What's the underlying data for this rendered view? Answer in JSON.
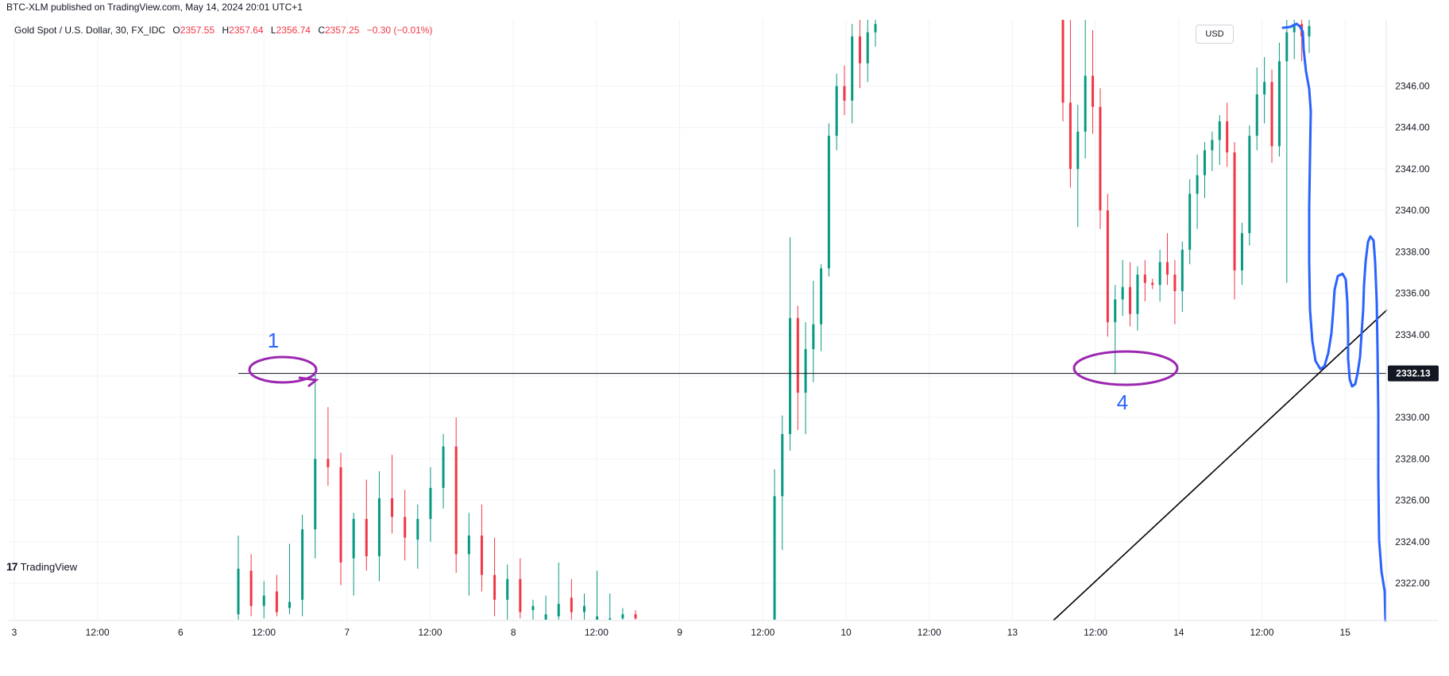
{
  "header": {
    "published": "BTC-XLM published on TradingView.com, May 14, 2024 20:01 UTC+1"
  },
  "legend": {
    "symbol": "Gold Spot / U.S. Dollar, 30, FX_IDC",
    "o_label": "O",
    "o_value": "2357.55",
    "h_label": "H",
    "h_value": "2357.64",
    "l_label": "L",
    "l_value": "2356.74",
    "c_label": "C",
    "c_value": "2357.25",
    "change": "−0.30 (−0.01%)"
  },
  "currency_button": "USD",
  "footer": {
    "brand": "TradingView",
    "logo": "17"
  },
  "colors": {
    "up": "#089981",
    "down": "#f23645",
    "grid": "#f0f3fa",
    "drawing_purple": "#9c27b0",
    "drawing_blue": "#2962ff",
    "price_tag_bg": "#131722"
  },
  "annotations": [
    {
      "text": "1"
    },
    {
      "text": "4"
    }
  ],
  "chart_data": {
    "type": "candlestick",
    "interval": "30",
    "ylim": [
      2320.2,
      2349.2
    ],
    "y_ticks": [
      "2322.00",
      "2324.00",
      "2326.00",
      "2328.00",
      "2330.00",
      "2332.00",
      "2334.00",
      "2336.00",
      "2338.00",
      "2340.00",
      "2342.00",
      "2344.00",
      "2346.00"
    ],
    "x_ticks": [
      "3",
      "12:00",
      "6",
      "12:00",
      "7",
      "12:00",
      "8",
      "12:00",
      "9",
      "12:00",
      "10",
      "12:00",
      "13",
      "12:00",
      "14",
      "12:00",
      "15"
    ],
    "horizontal_level": {
      "price": 2332.13,
      "label": "2332.13"
    },
    "trendline": {
      "from": {
        "x": "13",
        "price": 2320.2
      },
      "to": {
        "x": "15",
        "price": 2335.2
      }
    },
    "candles": [
      {
        "o": 2320.5,
        "h": 2324.3,
        "l": 2320.2,
        "c": 2322.7
      },
      {
        "o": 2322.6,
        "h": 2323.4,
        "l": 2320.4,
        "c": 2320.9
      },
      {
        "o": 2320.9,
        "h": 2322.1,
        "l": 2320.3,
        "c": 2321.4
      },
      {
        "o": 2321.6,
        "h": 2322.4,
        "l": 2320.4,
        "c": 2320.6
      },
      {
        "o": 2320.8,
        "h": 2323.9,
        "l": 2320.5,
        "c": 2321.1
      },
      {
        "o": 2321.2,
        "h": 2325.3,
        "l": 2320.4,
        "c": 2324.6
      },
      {
        "o": 2324.6,
        "h": 2332.1,
        "l": 2323.2,
        "c": 2328.0
      },
      {
        "o": 2328.0,
        "h": 2330.5,
        "l": 2326.7,
        "c": 2327.6
      },
      {
        "o": 2327.6,
        "h": 2328.3,
        "l": 2321.9,
        "c": 2323.0
      },
      {
        "o": 2323.2,
        "h": 2325.4,
        "l": 2321.4,
        "c": 2325.1
      },
      {
        "o": 2325.1,
        "h": 2327.0,
        "l": 2322.6,
        "c": 2323.3
      },
      {
        "o": 2323.3,
        "h": 2327.4,
        "l": 2322.1,
        "c": 2326.1
      },
      {
        "o": 2326.1,
        "h": 2328.2,
        "l": 2324.4,
        "c": 2325.2
      },
      {
        "o": 2325.2,
        "h": 2326.5,
        "l": 2323.1,
        "c": 2324.2
      },
      {
        "o": 2324.1,
        "h": 2325.8,
        "l": 2322.7,
        "c": 2325.1
      },
      {
        "o": 2325.1,
        "h": 2327.6,
        "l": 2324.0,
        "c": 2326.6
      },
      {
        "o": 2326.6,
        "h": 2329.2,
        "l": 2325.6,
        "c": 2328.6
      },
      {
        "o": 2328.6,
        "h": 2330.0,
        "l": 2322.5,
        "c": 2323.4
      },
      {
        "o": 2323.4,
        "h": 2325.4,
        "l": 2321.4,
        "c": 2324.3
      },
      {
        "o": 2324.3,
        "h": 2325.8,
        "l": 2321.6,
        "c": 2322.4
      },
      {
        "o": 2322.4,
        "h": 2324.2,
        "l": 2320.4,
        "c": 2321.2
      },
      {
        "o": 2321.2,
        "h": 2322.9,
        "l": 2320.2,
        "c": 2322.2
      },
      {
        "o": 2322.2,
        "h": 2323.2,
        "l": 2320.3,
        "c": 2320.6
      },
      {
        "o": 2320.7,
        "h": 2321.2,
        "l": 2320.2,
        "c": 2320.9
      },
      {
        "o": 2320.2,
        "h": 2321.4,
        "l": 2320.2,
        "c": 2320.5
      },
      {
        "o": 2320.4,
        "h": 2323.0,
        "l": 2320.2,
        "c": 2321.0
      },
      {
        "o": 2321.3,
        "h": 2322.2,
        "l": 2320.2,
        "c": 2320.6
      },
      {
        "o": 2320.6,
        "h": 2321.5,
        "l": 2320.2,
        "c": 2320.9
      },
      {
        "o": 2320.2,
        "h": 2322.6,
        "l": 2320.2,
        "c": 2320.4
      },
      {
        "o": 2320.2,
        "h": 2321.5,
        "l": 2320.2,
        "c": 2320.3
      },
      {
        "o": 2320.3,
        "h": 2320.8,
        "l": 2320.2,
        "c": 2320.5
      },
      {
        "o": 2320.5,
        "h": 2320.7,
        "l": 2320.2,
        "c": 2320.3
      },
      {
        "o": 2320.2,
        "h": 2327.5,
        "l": 2320.2,
        "c": 2326.2
      },
      {
        "o": 2326.2,
        "h": 2330.1,
        "l": 2323.6,
        "c": 2329.2
      },
      {
        "o": 2329.2,
        "h": 2338.7,
        "l": 2328.4,
        "c": 2334.8
      },
      {
        "o": 2334.8,
        "h": 2335.4,
        "l": 2329.4,
        "c": 2331.2
      },
      {
        "o": 2331.2,
        "h": 2334.6,
        "l": 2329.2,
        "c": 2333.3
      },
      {
        "o": 2333.3,
        "h": 2336.6,
        "l": 2331.7,
        "c": 2334.5
      },
      {
        "o": 2334.5,
        "h": 2337.4,
        "l": 2333.2,
        "c": 2337.2
      },
      {
        "o": 2337.2,
        "h": 2344.2,
        "l": 2336.8,
        "c": 2343.6
      },
      {
        "o": 2343.6,
        "h": 2346.6,
        "l": 2342.9,
        "c": 2346.0
      },
      {
        "o": 2346.0,
        "h": 2347.0,
        "l": 2344.6,
        "c": 2345.3
      },
      {
        "o": 2345.3,
        "h": 2349.0,
        "l": 2344.2,
        "c": 2348.4
      },
      {
        "o": 2348.4,
        "h": 2349.2,
        "l": 2345.9,
        "c": 2347.1
      },
      {
        "o": 2347.1,
        "h": 2349.2,
        "l": 2346.2,
        "c": 2348.6
      },
      {
        "o": 2348.6,
        "h": 2349.2,
        "l": 2347.9,
        "c": 2349.0
      },
      {
        "o": 2349.2,
        "h": 2349.2,
        "l": 2344.3,
        "c": 2345.2
      },
      {
        "o": 2345.2,
        "h": 2349.2,
        "l": 2341.1,
        "c": 2342.0
      },
      {
        "o": 2342.0,
        "h": 2345.1,
        "l": 2339.2,
        "c": 2343.8
      },
      {
        "o": 2343.8,
        "h": 2349.2,
        "l": 2342.5,
        "c": 2346.5
      },
      {
        "o": 2346.5,
        "h": 2348.7,
        "l": 2343.7,
        "c": 2345.0
      },
      {
        "o": 2345.0,
        "h": 2345.9,
        "l": 2339.1,
        "c": 2340.0
      },
      {
        "o": 2340.0,
        "h": 2340.8,
        "l": 2333.9,
        "c": 2334.6
      },
      {
        "o": 2334.6,
        "h": 2336.4,
        "l": 2332.1,
        "c": 2335.7
      },
      {
        "o": 2335.7,
        "h": 2337.6,
        "l": 2334.9,
        "c": 2336.3
      },
      {
        "o": 2336.3,
        "h": 2337.5,
        "l": 2334.4,
        "c": 2335.0
      },
      {
        "o": 2335.0,
        "h": 2337.3,
        "l": 2334.2,
        "c": 2336.9
      },
      {
        "o": 2336.9,
        "h": 2337.6,
        "l": 2335.6,
        "c": 2336.5
      },
      {
        "o": 2336.5,
        "h": 2336.7,
        "l": 2336.2,
        "c": 2336.4
      },
      {
        "o": 2336.4,
        "h": 2338.1,
        "l": 2335.6,
        "c": 2337.5
      },
      {
        "o": 2337.5,
        "h": 2338.9,
        "l": 2336.4,
        "c": 2336.9
      },
      {
        "o": 2336.9,
        "h": 2337.6,
        "l": 2334.5,
        "c": 2336.1
      },
      {
        "o": 2336.1,
        "h": 2338.5,
        "l": 2335.1,
        "c": 2338.1
      },
      {
        "o": 2338.1,
        "h": 2341.5,
        "l": 2337.4,
        "c": 2340.8
      },
      {
        "o": 2340.8,
        "h": 2342.7,
        "l": 2339.1,
        "c": 2341.7
      },
      {
        "o": 2341.7,
        "h": 2343.3,
        "l": 2340.6,
        "c": 2342.9
      },
      {
        "o": 2342.9,
        "h": 2343.8,
        "l": 2341.9,
        "c": 2343.4
      },
      {
        "o": 2343.4,
        "h": 2344.6,
        "l": 2342.2,
        "c": 2344.3
      },
      {
        "o": 2344.3,
        "h": 2345.2,
        "l": 2342.1,
        "c": 2342.8
      },
      {
        "o": 2342.8,
        "h": 2343.3,
        "l": 2335.7,
        "c": 2337.1
      },
      {
        "o": 2337.1,
        "h": 2339.4,
        "l": 2336.4,
        "c": 2338.9
      },
      {
        "o": 2338.9,
        "h": 2344.1,
        "l": 2338.3,
        "c": 2343.6
      },
      {
        "o": 2343.6,
        "h": 2346.9,
        "l": 2342.9,
        "c": 2345.6
      },
      {
        "o": 2345.6,
        "h": 2347.4,
        "l": 2344.2,
        "c": 2346.2
      },
      {
        "o": 2346.2,
        "h": 2346.8,
        "l": 2342.3,
        "c": 2343.1
      },
      {
        "o": 2343.1,
        "h": 2348.1,
        "l": 2342.6,
        "c": 2347.2
      },
      {
        "o": 2347.2,
        "h": 2349.2,
        "l": 2336.5,
        "c": 2348.6
      },
      {
        "o": 2348.6,
        "h": 2349.2,
        "l": 2347.3,
        "c": 2349.0
      },
      {
        "o": 2349.0,
        "h": 2349.2,
        "l": 2347.2,
        "c": 2348.4
      },
      {
        "o": 2348.4,
        "h": 2349.2,
        "l": 2347.6,
        "c": 2348.9
      }
    ]
  }
}
